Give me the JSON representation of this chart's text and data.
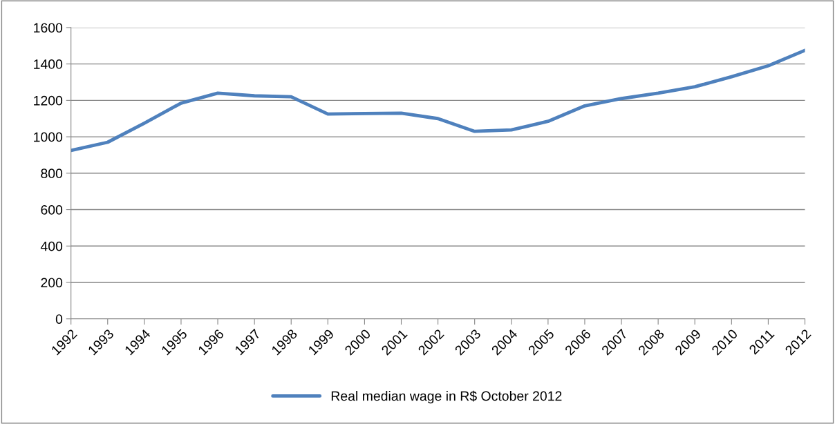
{
  "chart_data": {
    "type": "line",
    "categories": [
      "1992",
      "1993",
      "1994",
      "1995",
      "1996",
      "1997",
      "1998",
      "1999",
      "2000",
      "2001",
      "2002",
      "2003",
      "2004",
      "2005",
      "2006",
      "2007",
      "2008",
      "2009",
      "2010",
      "2011",
      "2012"
    ],
    "series": [
      {
        "name": "Real median wage in R$ October 2012",
        "color": "#4f81bd",
        "values": [
          925,
          970,
          1075,
          1185,
          1240,
          1225,
          1220,
          1125,
          1128,
          1130,
          1100,
          1030,
          1038,
          1085,
          1170,
          1210,
          1240,
          1275,
          1330,
          1390,
          1475
        ]
      }
    ],
    "ylim": [
      0,
      1600
    ],
    "yticks": [
      0,
      200,
      400,
      600,
      800,
      1000,
      1200,
      1400,
      1600
    ],
    "grid": "y",
    "legend": "bottom",
    "marker": "none",
    "line_style": "solid"
  }
}
